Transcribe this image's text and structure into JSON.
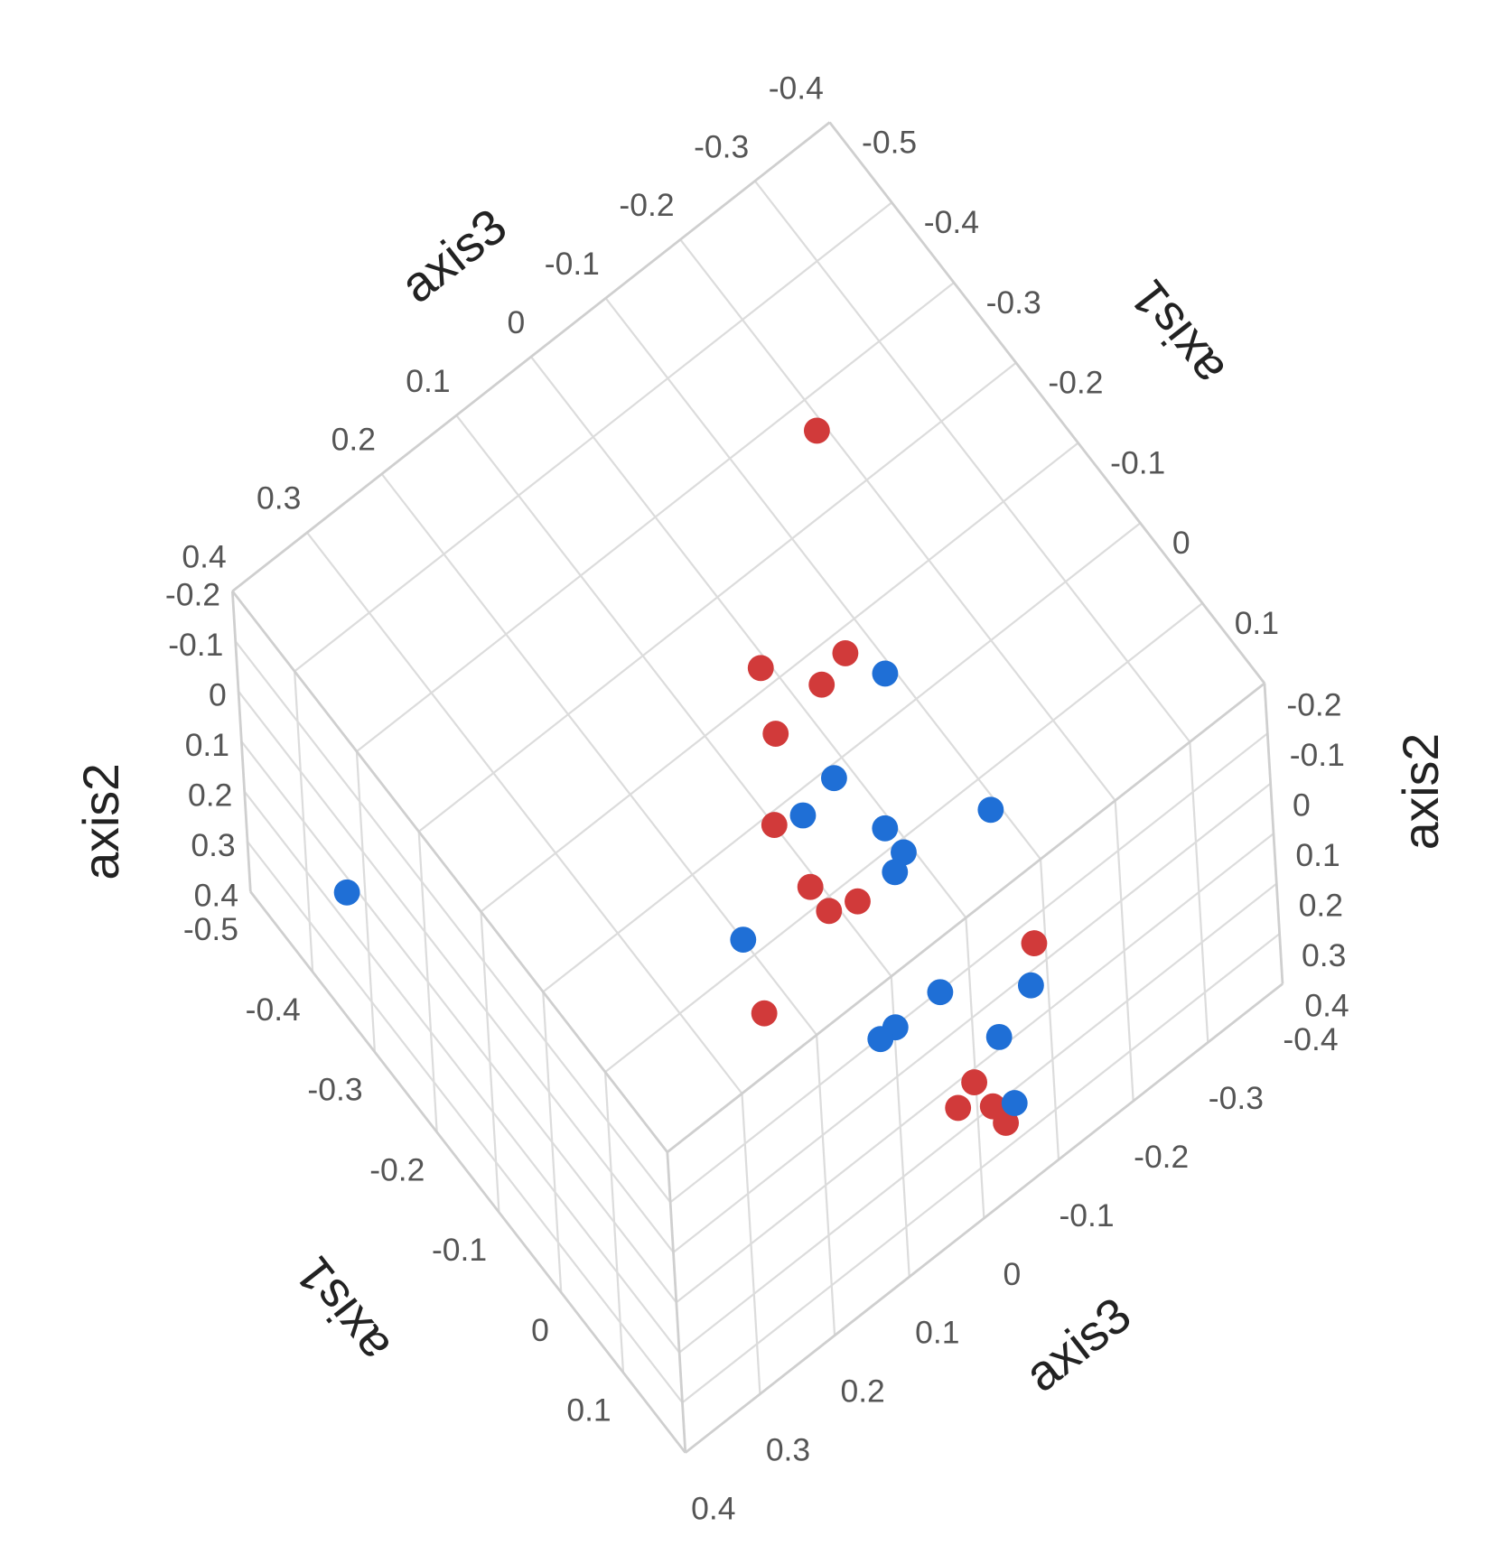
{
  "chart_data": {
    "type": "scatter3d",
    "x_label": "axis1",
    "y_label": "axis2",
    "z_label": "axis3",
    "xlim": [
      -0.5,
      0.2
    ],
    "ylim": [
      -0.2,
      0.4
    ],
    "zlim": [
      -0.4,
      0.4
    ],
    "xticks": [
      -0.5,
      -0.4,
      -0.3,
      -0.2,
      -0.1,
      0,
      0.1
    ],
    "yticks": [
      -0.2,
      -0.1,
      0,
      0.1,
      0.2,
      0.3,
      0.4
    ],
    "zticks": [
      -0.4,
      -0.3,
      -0.2,
      -0.1,
      0,
      0.1,
      0.2,
      0.3,
      0.4
    ],
    "grid": true,
    "series": [
      {
        "color": "#d13a3a",
        "x": [
          -0.35,
          -0.2,
          -0.16,
          -0.15,
          -0.14,
          -0.07,
          0,
          0.03,
          0.04,
          0.07,
          0.18,
          0.17,
          0.18,
          0.2,
          0.18
        ],
        "y": [
          0,
          0,
          0,
          0,
          0,
          0,
          0,
          0,
          0,
          0,
          0,
          0.2,
          0.2,
          0.2,
          0.3
        ],
        "z": [
          -0.25,
          -0.05,
          -0.13,
          -0.09,
          -0.02,
          0.04,
          0.05,
          0.05,
          0.02,
          0.17,
          -0.1,
          -0.02,
          0.01,
          -0.02,
          -0.05
        ]
      },
      {
        "color": "#1f6fd6",
        "x": [
          -0.12,
          -0.07,
          -0.06,
          0.05,
          0,
          0.03,
          0.04,
          0,
          -0.4,
          0.12,
          0.17,
          0.12,
          0.12,
          0.15,
          0.17
        ],
        "y": [
          0,
          0,
          0,
          0,
          0,
          0,
          0,
          0,
          0.3,
          0.1,
          0.1,
          0.1,
          0.1,
          0.2,
          0.3
        ],
        "z": [
          -0.15,
          -0.04,
          0.01,
          -0.15,
          -0.05,
          -0.05,
          -0.03,
          0.14,
          0.35,
          -0.02,
          -0.1,
          0.04,
          0.06,
          -0.07,
          -0.07
        ]
      }
    ]
  }
}
